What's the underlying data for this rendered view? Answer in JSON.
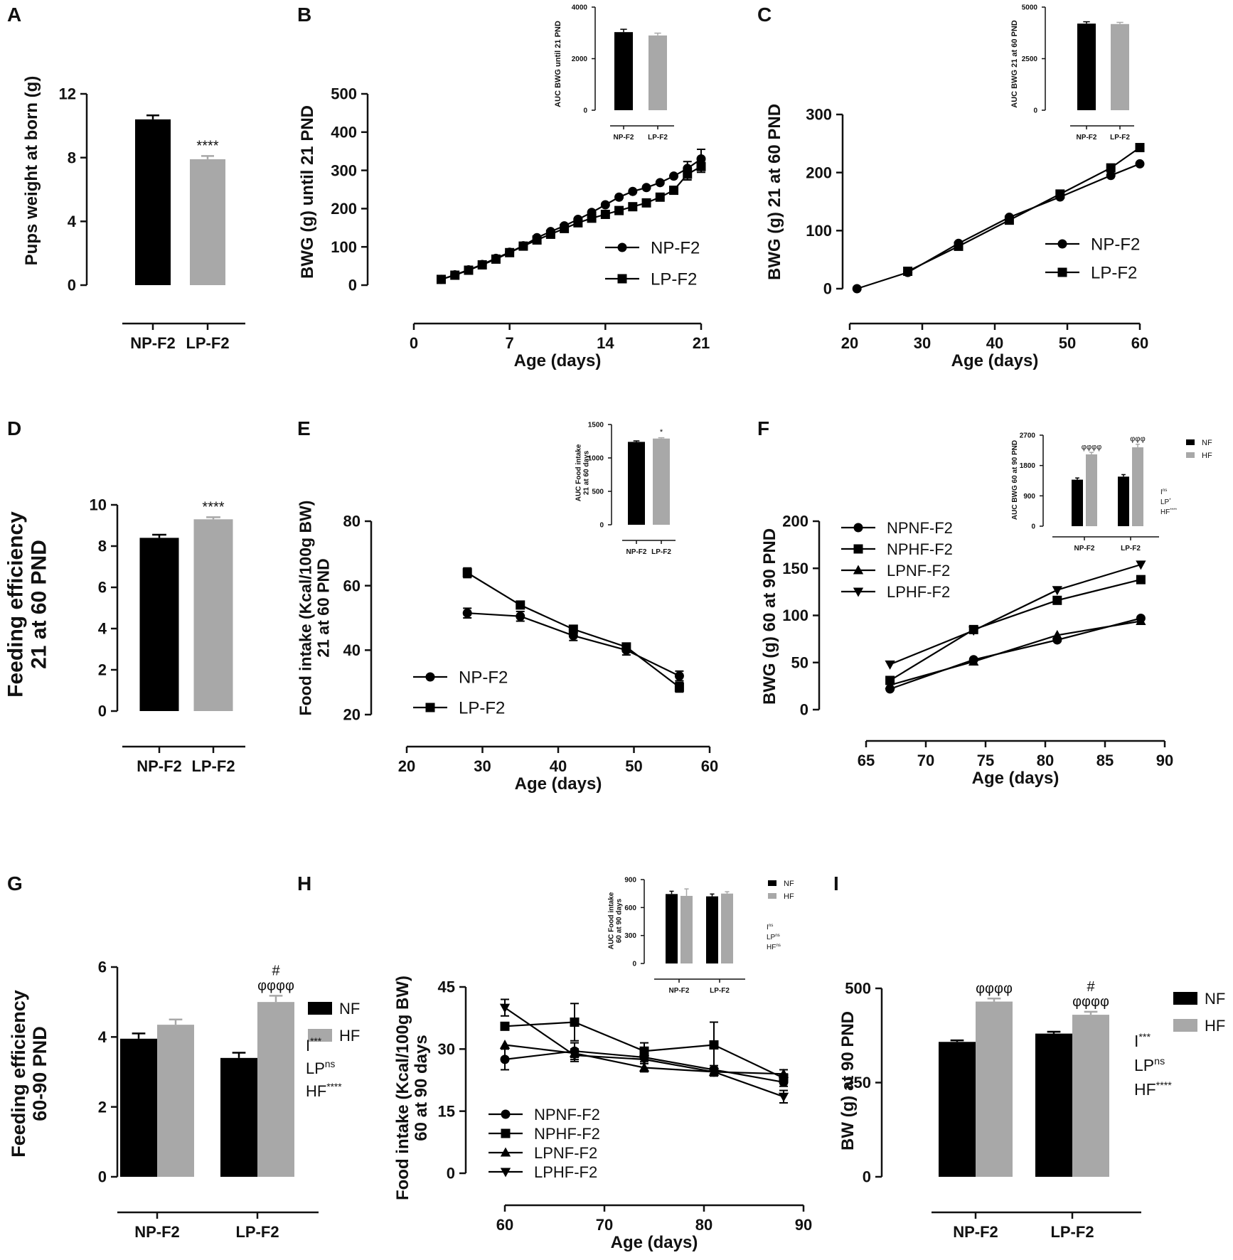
{
  "figure": {
    "panel_letters": [
      "A",
      "B",
      "C",
      "D",
      "E",
      "F",
      "G",
      "H",
      "I"
    ]
  },
  "colors": {
    "black": "#000000",
    "gray": "#a8a8a8",
    "axis": "#111111"
  },
  "chart_data": [
    {
      "id": "A",
      "type": "bar",
      "ylabel": "Pups weight at born (g)",
      "xlabel": "",
      "categories": [
        "NP-F2",
        "LP-F2"
      ],
      "values": [
        10.4,
        7.9
      ],
      "errors": [
        0.25,
        0.2
      ],
      "ylim": [
        0,
        12
      ],
      "yticks": [
        0,
        4,
        8,
        12
      ],
      "yticks_labels": [
        "0",
        "4",
        "8",
        "12"
      ],
      "annotations": [
        {
          "category": "LP-F2",
          "text": "****"
        }
      ]
    },
    {
      "id": "B",
      "type": "line",
      "ylabel": "BWG (g) until 21 PND",
      "xlabel": "Age (days)",
      "xlim": [
        0,
        21
      ],
      "xticks": [
        0,
        7,
        14,
        21
      ],
      "xticks_labels": [
        "0",
        "7",
        "14",
        "21"
      ],
      "ylim": [
        0,
        500
      ],
      "yticks": [
        0,
        100,
        200,
        300,
        400,
        500
      ],
      "yticks_labels": [
        "0",
        "100",
        "200",
        "300",
        "400",
        "500"
      ],
      "legend": [
        "NP-F2",
        "LP-F2"
      ],
      "series": [
        {
          "name": "NP-F2",
          "marker": "circle",
          "x": [
            2,
            3,
            4,
            5,
            6,
            7,
            8,
            9,
            10,
            11,
            12,
            13,
            14,
            15,
            16,
            17,
            18,
            19,
            20,
            21
          ],
          "y": [
            15,
            27,
            40,
            54,
            70,
            86,
            103,
            124,
            140,
            155,
            172,
            190,
            210,
            230,
            245,
            255,
            268,
            285,
            305,
            330
          ],
          "err": [
            0,
            0,
            0,
            0,
            0,
            0,
            0,
            0,
            0,
            0,
            0,
            0,
            0,
            0,
            0,
            0,
            0,
            0,
            18,
            25
          ]
        },
        {
          "name": "LP-F2",
          "marker": "square",
          "x": [
            2,
            3,
            4,
            5,
            6,
            7,
            8,
            9,
            10,
            11,
            12,
            13,
            14,
            15,
            16,
            17,
            18,
            19,
            20,
            21
          ],
          "y": [
            15,
            26,
            39,
            53,
            68,
            85,
            102,
            118,
            133,
            148,
            163,
            175,
            185,
            195,
            205,
            215,
            230,
            248,
            290,
            310
          ],
          "err": [
            0,
            0,
            0,
            0,
            0,
            0,
            0,
            0,
            0,
            0,
            0,
            0,
            0,
            0,
            0,
            0,
            0,
            0,
            15,
            15
          ]
        }
      ],
      "inset": {
        "type": "bar",
        "ylabel": "AUC BWG until 21 PND",
        "categories": [
          "NP-F2",
          "LP-F2"
        ],
        "values": [
          3030,
          2900
        ],
        "errors": [
          110,
          90
        ],
        "ylim": [
          0,
          4000
        ],
        "yticks": [
          0,
          2000,
          4000
        ],
        "yticks_labels": [
          "0",
          "2000",
          "4000"
        ]
      }
    },
    {
      "id": "C",
      "type": "line",
      "ylabel": "BWG (g) 21 at 60 PND",
      "xlabel": "Age (days)",
      "xlim": [
        20,
        60
      ],
      "xticks": [
        20,
        30,
        40,
        50,
        60
      ],
      "xticks_labels": [
        "20",
        "30",
        "40",
        "50",
        "60"
      ],
      "ylim": [
        0,
        300
      ],
      "yticks": [
        0,
        100,
        200,
        300
      ],
      "yticks_labels": [
        "0",
        "100",
        "200",
        "300"
      ],
      "legend": [
        "NP-F2",
        "LP-F2"
      ],
      "series": [
        {
          "name": "NP-F2",
          "marker": "circle",
          "x": [
            21,
            28,
            35,
            42,
            49,
            56,
            60
          ],
          "y": [
            0,
            28,
            78,
            123,
            158,
            195,
            215
          ]
        },
        {
          "name": "LP-F2",
          "marker": "square",
          "x": [
            28,
            35,
            42,
            49,
            56,
            60
          ],
          "y": [
            30,
            73,
            118,
            163,
            208,
            243
          ]
        }
      ],
      "inset": {
        "type": "bar",
        "ylabel": "AUC BWG 21 at 60 PND",
        "categories": [
          "NP-F2",
          "LP-F2"
        ],
        "values": [
          4200,
          4180
        ],
        "errors": [
          90,
          80
        ],
        "ylim": [
          0,
          5000
        ],
        "yticks": [
          0,
          2500,
          5000
        ],
        "yticks_labels": [
          "0",
          "2500",
          "5000"
        ]
      }
    },
    {
      "id": "D",
      "type": "bar",
      "ylabel": "Feeding efficiency\n21 at 60 PND",
      "xlabel": "",
      "categories": [
        "NP-F2",
        "LP-F2"
      ],
      "values": [
        8.4,
        9.3
      ],
      "errors": [
        0.15,
        0.1
      ],
      "ylim": [
        0,
        10
      ],
      "yticks": [
        0,
        2,
        4,
        6,
        8,
        10
      ],
      "yticks_labels": [
        "0",
        "2",
        "4",
        "6",
        "8",
        "10"
      ],
      "annotations": [
        {
          "category": "LP-F2",
          "text": "****"
        }
      ]
    },
    {
      "id": "E",
      "type": "line",
      "ylabel": "Food intake (Kcal/100g BW)\n21 at 60 PND",
      "xlabel": "Age (days)",
      "xlim": [
        20,
        60
      ],
      "xticks": [
        20,
        30,
        40,
        50,
        60
      ],
      "xticks_labels": [
        "20",
        "30",
        "40",
        "50",
        "60"
      ],
      "ylim": [
        20,
        80
      ],
      "yticks": [
        20,
        40,
        60,
        80
      ],
      "yticks_labels": [
        "20",
        "40",
        "60",
        "80"
      ],
      "legend": [
        "NP-F2",
        "LP-F2"
      ],
      "series": [
        {
          "name": "NP-F2",
          "marker": "circle",
          "x": [
            28,
            35,
            42,
            49,
            56
          ],
          "y": [
            51.5,
            50.5,
            44.5,
            40,
            32
          ],
          "err": [
            1.5,
            1.5,
            1.5,
            1.5,
            1.5
          ]
        },
        {
          "name": "LP-F2",
          "marker": "square",
          "x": [
            28,
            35,
            42,
            49,
            56
          ],
          "y": [
            64,
            54,
            46.5,
            41,
            28.5
          ],
          "err": [
            1.5,
            1,
            1,
            1,
            1.5
          ]
        }
      ],
      "inset": {
        "type": "bar",
        "ylabel": "AUC Food intake\n21 at 60 days",
        "categories": [
          "NP-F2",
          "LP-F2"
        ],
        "values": [
          1240,
          1290
        ],
        "errors": [
          15,
          12
        ],
        "ylim": [
          0,
          1500
        ],
        "yticks": [
          0,
          500,
          1000,
          1500
        ],
        "yticks_labels": [
          "0",
          "500",
          "1000",
          "1500"
        ],
        "annotations": [
          {
            "category": "LP-F2",
            "text": "*"
          }
        ]
      }
    },
    {
      "id": "F",
      "type": "line",
      "ylabel": "BWG (g) 60 at 90 PND",
      "xlabel": "Age (days)",
      "xlim": [
        65,
        90
      ],
      "xticks": [
        65,
        70,
        75,
        80,
        85,
        90
      ],
      "xticks_labels": [
        "65",
        "70",
        "75",
        "80",
        "85",
        "90"
      ],
      "ylim": [
        0,
        200
      ],
      "yticks": [
        0,
        50,
        100,
        150,
        200
      ],
      "yticks_labels": [
        "0",
        "50",
        "100",
        "150",
        "200"
      ],
      "legend": [
        "NPNF-F2",
        "NPHF-F2",
        "LPNF-F2",
        "LPHF-F2"
      ],
      "series": [
        {
          "name": "NPNF-F2",
          "marker": "circle",
          "x": [
            67,
            74,
            81,
            88
          ],
          "y": [
            22,
            53,
            74,
            97
          ]
        },
        {
          "name": "NPHF-F2",
          "marker": "square",
          "x": [
            67,
            74,
            81,
            88
          ],
          "y": [
            31,
            85,
            116,
            138
          ]
        },
        {
          "name": "LPNF-F2",
          "marker": "triangle",
          "x": [
            67,
            74,
            81,
            88
          ],
          "y": [
            26,
            51,
            79,
            94
          ]
        },
        {
          "name": "LPHF-F2",
          "marker": "tridown",
          "x": [
            67,
            74,
            81,
            88
          ],
          "y": [
            48,
            84,
            127,
            154
          ]
        }
      ],
      "inset": {
        "type": "bar",
        "ylabel": "AUC BWG 60 at 90 PND",
        "categories": [
          "NP-F2",
          "LP-F2"
        ],
        "series": [
          {
            "name": "NF",
            "values": [
              1380,
              1470
            ],
            "errors": [
              50,
              60
            ]
          },
          {
            "name": "HF",
            "values": [
              2130,
              2340
            ],
            "errors": [
              60,
              90
            ]
          }
        ],
        "ylim": [
          0,
          2700
        ],
        "yticks": [
          0,
          900,
          1800,
          2700
        ],
        "yticks_labels": [
          "0",
          "900",
          "1800",
          "2700"
        ],
        "legend": [
          "NF",
          "HF"
        ],
        "annotations": [
          {
            "category": "NP-F2",
            "series": "HF",
            "text": "φφφφ"
          },
          {
            "category": "LP-F2",
            "series": "HF",
            "text": "φφφ"
          }
        ],
        "stats": [
          {
            "label": "I",
            "sup": "ns"
          },
          {
            "label": "LP",
            "sup": "*"
          },
          {
            "label": "HF",
            "sup": "****"
          }
        ]
      }
    },
    {
      "id": "G",
      "type": "bar",
      "ylabel": "Feeding efficiency\n60-90 PND",
      "xlabel": "",
      "categories": [
        "NP-F2",
        "LP-F2"
      ],
      "series": [
        {
          "name": "NF",
          "values": [
            3.95,
            3.4
          ],
          "errors": [
            0.15,
            0.15
          ]
        },
        {
          "name": "HF",
          "values": [
            4.35,
            5.0
          ],
          "errors": [
            0.15,
            0.18
          ]
        }
      ],
      "ylim": [
        0,
        6
      ],
      "yticks": [
        0,
        2,
        4,
        6
      ],
      "yticks_labels": [
        "0",
        "2",
        "4",
        "6"
      ],
      "legend": [
        "NF",
        "HF"
      ],
      "annotations": [
        {
          "category": "LP-F2",
          "series": "HF",
          "text": "#",
          "line": 1
        },
        {
          "category": "LP-F2",
          "series": "HF",
          "text": "φφφφ",
          "line": 0
        }
      ],
      "stats": [
        {
          "label": "I",
          "sup": "***"
        },
        {
          "label": "LP",
          "sup": "ns"
        },
        {
          "label": "HF",
          "sup": "****"
        }
      ]
    },
    {
      "id": "H",
      "type": "line",
      "ylabel": "Food intake (Kcal/100g BW)\n60 at 90 days",
      "xlabel": "Age (days)",
      "xlim": [
        60,
        90
      ],
      "xticks": [
        60,
        70,
        80,
        90
      ],
      "xticks_labels": [
        "60",
        "70",
        "80",
        "90"
      ],
      "ylim": [
        0,
        45
      ],
      "yticks": [
        0,
        15,
        30,
        45
      ],
      "yticks_labels": [
        "0",
        "15",
        "30",
        "45"
      ],
      "legend": [
        "NPNF-F2",
        "NPHF-F2",
        "LPNF-F2",
        "LPHF-F2"
      ],
      "series": [
        {
          "name": "NPNF-F2",
          "marker": "circle",
          "x": [
            60,
            67,
            74,
            81,
            88
          ],
          "y": [
            27.5,
            29.5,
            28,
            25,
            22
          ],
          "err": [
            2.5,
            2,
            1,
            1,
            1
          ]
        },
        {
          "name": "NPHF-F2",
          "marker": "square",
          "x": [
            60,
            67,
            74,
            81,
            88
          ],
          "y": [
            35.5,
            36.5,
            29.5,
            31,
            23
          ],
          "err": [
            0,
            4.5,
            2,
            5.5,
            1
          ]
        },
        {
          "name": "LPNF-F2",
          "marker": "triangle",
          "x": [
            60,
            67,
            74,
            81,
            88
          ],
          "y": [
            31,
            29,
            25.5,
            24.5,
            24
          ],
          "err": [
            0,
            1,
            1,
            1,
            1
          ]
        },
        {
          "name": "LPHF-F2",
          "marker": "tridown",
          "x": [
            60,
            67,
            74,
            81,
            88
          ],
          "y": [
            40,
            28.5,
            27.5,
            24.5,
            18.5
          ],
          "err": [
            2,
            1.5,
            1,
            1,
            1.5
          ]
        }
      ],
      "inset": {
        "type": "bar",
        "ylabel": "AUC Food intake\n60 at 90 days",
        "categories": [
          "NP-F2",
          "LP-F2"
        ],
        "series": [
          {
            "name": "NF",
            "values": [
              745,
              720
            ],
            "errors": [
              30,
              25
            ]
          },
          {
            "name": "HF",
            "values": [
              725,
              750
            ],
            "errors": [
              75,
              20
            ]
          }
        ],
        "ylim": [
          0,
          900
        ],
        "yticks": [
          0,
          300,
          600,
          900
        ],
        "yticks_labels": [
          "0",
          "300",
          "600",
          "900"
        ],
        "legend": [
          "NF",
          "HF"
        ],
        "stats": [
          {
            "label": "I",
            "sup": "ns"
          },
          {
            "label": "LP",
            "sup": "ns"
          },
          {
            "label": "HF",
            "sup": "ns"
          }
        ]
      }
    },
    {
      "id": "I",
      "type": "bar",
      "ylabel": "BW (g) at 90 PND",
      "xlabel": "",
      "categories": [
        "NP-F2",
        "LP-F2"
      ],
      "series": [
        {
          "name": "NF",
          "values": [
            358,
            380
          ],
          "errors": [
            4,
            5
          ]
        },
        {
          "name": "HF",
          "values": [
            465,
            430
          ],
          "errors": [
            8,
            8
          ]
        }
      ],
      "ylim": [
        0,
        500
      ],
      "yticks": [
        0,
        250,
        500
      ],
      "yticks_labels": [
        "0",
        "250",
        "500"
      ],
      "legend": [
        "NF",
        "HF"
      ],
      "annotations": [
        {
          "category": "NP-F2",
          "series": "HF",
          "text": "φφφφ",
          "line": 0
        },
        {
          "category": "LP-F2",
          "series": "HF",
          "text": "#",
          "line": 1
        },
        {
          "category": "LP-F2",
          "series": "HF",
          "text": "φφφφ",
          "line": 0
        }
      ],
      "stats": [
        {
          "label": "I",
          "sup": "***"
        },
        {
          "label": "LP",
          "sup": "ns"
        },
        {
          "label": "HF",
          "sup": "****"
        }
      ]
    }
  ]
}
